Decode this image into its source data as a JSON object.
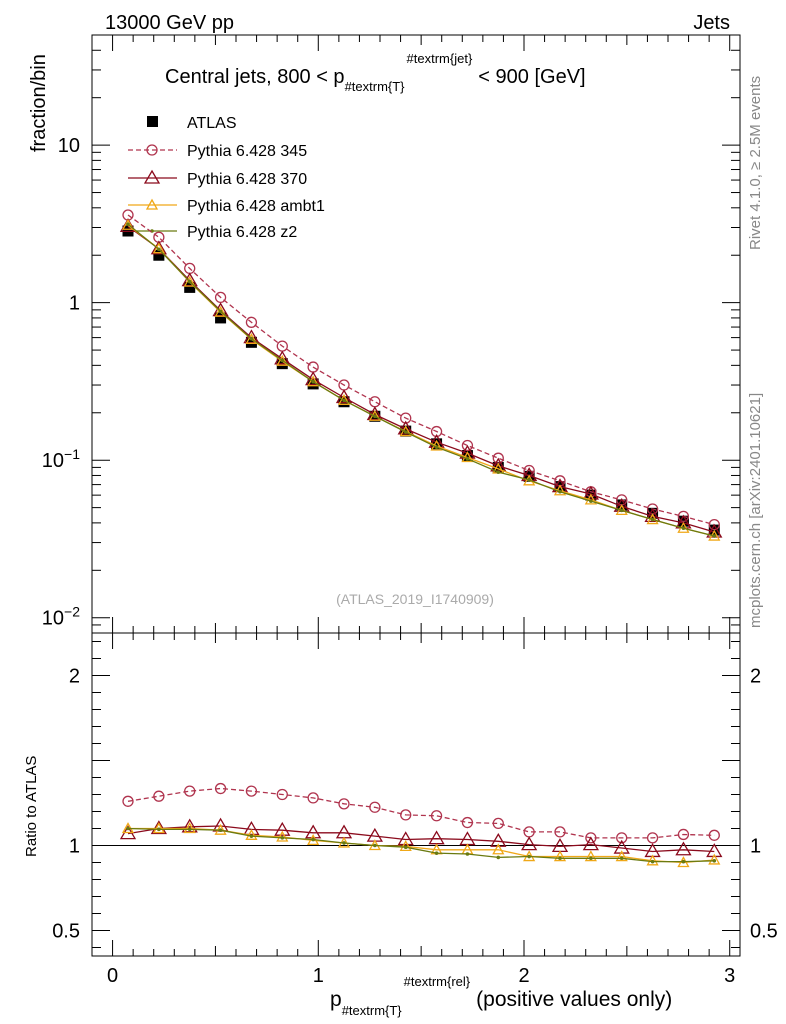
{
  "header": {
    "left": "13000 GeV pp",
    "right": "Jets"
  },
  "side_labels": {
    "rivet": "Rivet 4.1.0, ≥ 2.5M events",
    "mcplots": "mcplots.cern.ch [arXiv:2401.10621]"
  },
  "colors": {
    "atlas": "#000000",
    "p345": "#b0344e",
    "p370": "#8b0a1c",
    "ambt1": "#f0a818",
    "z2": "#6a7a10"
  },
  "chart_data": [
    {
      "type": "line",
      "panel": "main",
      "title_parts": {
        "prefix": "Central jets, 800 < p",
        "sub": "#textrm{T}",
        "sup": "#textrm{jet}",
        "suffix": "< 900 [GeV]"
      },
      "ylabel": "fraction/bin",
      "yscale": "log",
      "ylim": [
        0.008,
        50
      ],
      "xlim": [
        -0.1,
        3.05
      ],
      "y_ticks": [
        {
          "value": 10,
          "label": "10"
        },
        {
          "value": 1,
          "label": "1"
        },
        {
          "value": 0.1,
          "label": "10",
          "exp": "−1"
        },
        {
          "value": 0.01,
          "label": "10",
          "exp": "−2"
        }
      ],
      "watermark": "(ATLAS_2019_I1740909)",
      "x": [
        0.075,
        0.225,
        0.375,
        0.525,
        0.675,
        0.825,
        0.975,
        1.125,
        1.275,
        1.425,
        1.575,
        1.725,
        1.875,
        2.025,
        2.175,
        2.325,
        2.475,
        2.625,
        2.775,
        2.925
      ],
      "series": [
        {
          "name": "ATLAS",
          "key": "atlas",
          "style": "data",
          "values": [
            2.85,
            2.0,
            1.25,
            0.8,
            0.56,
            0.41,
            0.305,
            0.235,
            0.19,
            0.153,
            0.127,
            0.107,
            0.09,
            0.079,
            0.068,
            0.06,
            0.052,
            0.046,
            0.041,
            0.036
          ]
        },
        {
          "name": "Pythia 6.428 345",
          "key": "p345",
          "style": "dashed-circle",
          "values": [
            3.6,
            2.6,
            1.65,
            1.08,
            0.75,
            0.53,
            0.39,
            0.3,
            0.235,
            0.185,
            0.152,
            0.124,
            0.103,
            0.086,
            0.074,
            0.063,
            0.056,
            0.049,
            0.044,
            0.039
          ]
        },
        {
          "name": "Pythia 6.428 370",
          "key": "p370",
          "style": "solid-triangle",
          "values": [
            3.05,
            2.2,
            1.38,
            0.89,
            0.6,
            0.44,
            0.325,
            0.25,
            0.195,
            0.158,
            0.13,
            0.111,
            0.092,
            0.08,
            0.068,
            0.061,
            0.051,
            0.044,
            0.04,
            0.035
          ]
        },
        {
          "name": "Pythia 6.428 ambt1",
          "key": "ambt1",
          "style": "solid-small-triangle",
          "values": [
            3.1,
            2.2,
            1.35,
            0.87,
            0.585,
            0.425,
            0.315,
            0.24,
            0.19,
            0.152,
            0.123,
            0.104,
            0.088,
            0.074,
            0.064,
            0.056,
            0.048,
            0.042,
            0.037,
            0.033
          ]
        },
        {
          "name": "Pythia 6.428 z2",
          "key": "z2",
          "style": "solid-dot",
          "values": [
            3.15,
            2.18,
            1.36,
            0.88,
            0.59,
            0.43,
            0.315,
            0.24,
            0.19,
            0.151,
            0.121,
            0.102,
            0.084,
            0.075,
            0.063,
            0.055,
            0.048,
            0.042,
            0.037,
            0.033
          ]
        }
      ]
    },
    {
      "type": "line",
      "panel": "ratio",
      "ylabel": "Ratio to ATLAS",
      "yscale": "linear",
      "ylim": [
        0.35,
        2.25
      ],
      "xlim": [
        -0.1,
        3.05
      ],
      "xlabel_parts": {
        "prefix": "p",
        "sub": "#textrm{T}",
        "sup": "#textrm{rel}",
        "suffix": "(positive values only)"
      },
      "y_ticks": [
        {
          "value": 2,
          "label": "2"
        },
        {
          "value": 1,
          "label": "1"
        },
        {
          "value": 0.5,
          "label": "0.5"
        }
      ],
      "x_ticks": [
        {
          "value": 0,
          "label": "0"
        },
        {
          "value": 1,
          "label": "1"
        },
        {
          "value": 2,
          "label": "2"
        },
        {
          "value": 3,
          "label": "3"
        }
      ],
      "x": [
        0.075,
        0.225,
        0.375,
        0.525,
        0.675,
        0.825,
        0.975,
        1.125,
        1.275,
        1.425,
        1.575,
        1.725,
        1.875,
        2.025,
        2.175,
        2.325,
        2.475,
        2.625,
        2.775,
        2.925
      ],
      "series": [
        {
          "name": "Pythia 6.428 345",
          "key": "p345",
          "style": "dashed-circle",
          "values": [
            1.26,
            1.29,
            1.32,
            1.335,
            1.32,
            1.3,
            1.28,
            1.245,
            1.225,
            1.18,
            1.175,
            1.135,
            1.13,
            1.08,
            1.08,
            1.045,
            1.045,
            1.045,
            1.065,
            1.06
          ]
        },
        {
          "name": "Pythia 6.428 370",
          "key": "p370",
          "style": "solid-triangle",
          "values": [
            1.07,
            1.1,
            1.11,
            1.115,
            1.095,
            1.09,
            1.075,
            1.075,
            1.055,
            1.035,
            1.04,
            1.035,
            1.025,
            1.005,
            0.995,
            1.005,
            0.985,
            0.965,
            0.975,
            0.965
          ]
        },
        {
          "name": "Pythia 6.428 ambt1",
          "key": "ambt1",
          "style": "solid-small-triangle",
          "values": [
            1.1,
            1.1,
            1.1,
            1.09,
            1.06,
            1.05,
            1.03,
            1.015,
            1.0,
            0.995,
            0.975,
            0.975,
            0.975,
            0.935,
            0.935,
            0.935,
            0.935,
            0.91,
            0.9,
            0.915
          ]
        },
        {
          "name": "Pythia 6.428 z2",
          "key": "z2",
          "style": "solid-dot",
          "values": [
            1.1,
            1.095,
            1.095,
            1.09,
            1.055,
            1.045,
            1.035,
            1.015,
            1.0,
            0.99,
            0.955,
            0.95,
            0.93,
            0.935,
            0.925,
            0.925,
            0.925,
            0.905,
            0.905,
            0.91
          ]
        }
      ]
    }
  ]
}
